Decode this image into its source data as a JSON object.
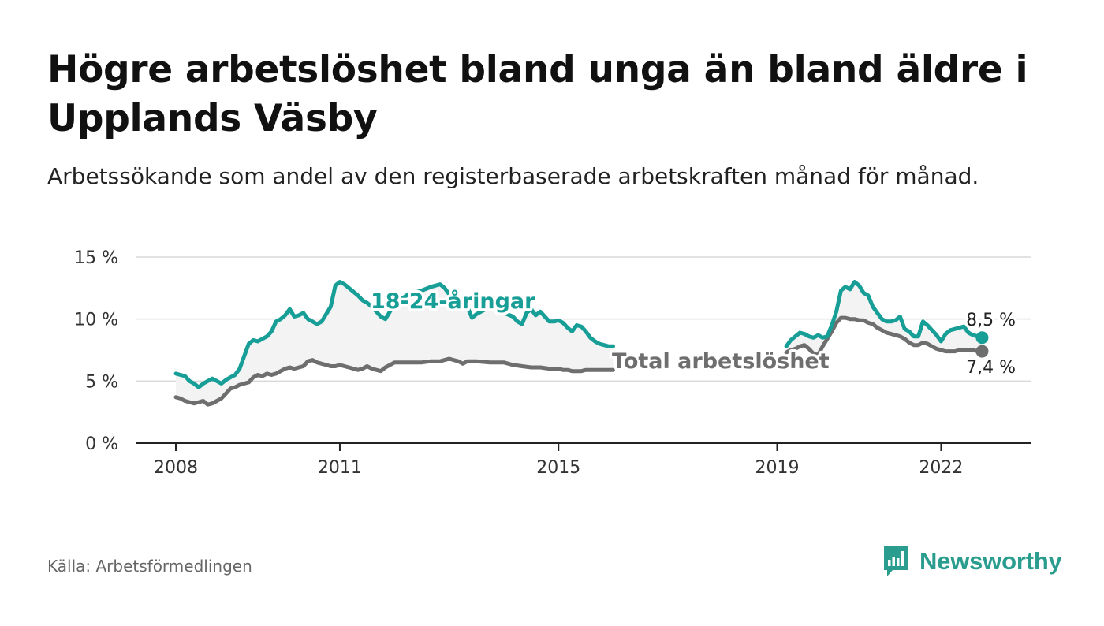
{
  "header": {
    "title": "Högre arbetslöshet bland unga än bland äldre i Upplands Väsby",
    "subtitle": "Arbetssökande som andel av den registerbaserade arbetskraften månad för månad."
  },
  "footer": {
    "source": "Källa: Arbetsförmedlingen",
    "brand": "Newsworthy"
  },
  "colors": {
    "youth": "#179e96",
    "total": "#6e6e6e",
    "brand": "#2a9d8f",
    "grid": "#d9d9d9",
    "band": "#f3f3f3"
  },
  "chart_data": {
    "type": "line",
    "title": "Högre arbetslöshet bland unga än bland äldre i Upplands Väsby",
    "xlabel": "",
    "ylabel": "",
    "xlim": [
      2008.0,
      2022.917
    ],
    "ylim": [
      0,
      15
    ],
    "yticks": [
      0,
      5,
      10,
      15
    ],
    "ytick_labels": [
      "0 %",
      "5 %",
      "10 %",
      "15 %"
    ],
    "xticks": [
      2008,
      2011,
      2015,
      2019,
      2022
    ],
    "xtick_labels": [
      "2008",
      "2011",
      "2015",
      "2019",
      "2022"
    ],
    "grid": true,
    "gap_after": 2016.0,
    "gap_before": 2019.167,
    "series": [
      {
        "name": "18-24-åringar",
        "label": "18-24-åringar",
        "end_label": "8,5 %",
        "points": [
          [
            2008.0,
            5.6
          ],
          [
            2008.083,
            5.5
          ],
          [
            2008.167,
            5.4
          ],
          [
            2008.25,
            5.0
          ],
          [
            2008.333,
            4.8
          ],
          [
            2008.417,
            4.5
          ],
          [
            2008.5,
            4.8
          ],
          [
            2008.583,
            5.0
          ],
          [
            2008.667,
            5.2
          ],
          [
            2008.75,
            5.0
          ],
          [
            2008.833,
            4.8
          ],
          [
            2008.917,
            5.1
          ],
          [
            2009.0,
            5.3
          ],
          [
            2009.083,
            5.5
          ],
          [
            2009.167,
            6.0
          ],
          [
            2009.25,
            7.0
          ],
          [
            2009.333,
            8.0
          ],
          [
            2009.417,
            8.3
          ],
          [
            2009.5,
            8.2
          ],
          [
            2009.583,
            8.4
          ],
          [
            2009.667,
            8.6
          ],
          [
            2009.75,
            9.0
          ],
          [
            2009.833,
            9.8
          ],
          [
            2009.917,
            10.0
          ],
          [
            2010.0,
            10.3
          ],
          [
            2010.083,
            10.8
          ],
          [
            2010.167,
            10.2
          ],
          [
            2010.25,
            10.3
          ],
          [
            2010.333,
            10.5
          ],
          [
            2010.417,
            10.0
          ],
          [
            2010.5,
            9.8
          ],
          [
            2010.583,
            9.6
          ],
          [
            2010.667,
            9.8
          ],
          [
            2010.75,
            10.4
          ],
          [
            2010.833,
            11.0
          ],
          [
            2010.917,
            12.7
          ],
          [
            2011.0,
            13.0
          ],
          [
            2011.083,
            12.8
          ],
          [
            2011.167,
            12.5
          ],
          [
            2011.25,
            12.2
          ],
          [
            2011.333,
            11.9
          ],
          [
            2011.417,
            11.5
          ],
          [
            2011.5,
            11.3
          ],
          [
            2011.583,
            11.0
          ],
          [
            2011.667,
            10.6
          ],
          [
            2011.75,
            10.2
          ],
          [
            2011.833,
            10.0
          ],
          [
            2011.917,
            10.6
          ],
          [
            2012.0,
            11.2
          ],
          [
            2012.25,
            12.0
          ],
          [
            2012.5,
            12.3
          ],
          [
            2012.667,
            12.6
          ],
          [
            2012.833,
            12.8
          ],
          [
            2012.917,
            12.5
          ],
          [
            2013.0,
            12.0
          ],
          [
            2013.167,
            11.5
          ],
          [
            2013.333,
            11.0
          ],
          [
            2013.417,
            10.1
          ],
          [
            2013.5,
            10.4
          ],
          [
            2013.75,
            11.0
          ],
          [
            2014.0,
            10.5
          ],
          [
            2014.167,
            10.2
          ],
          [
            2014.25,
            9.8
          ],
          [
            2014.333,
            9.6
          ],
          [
            2014.417,
            10.5
          ],
          [
            2014.5,
            10.8
          ],
          [
            2014.583,
            10.3
          ],
          [
            2014.667,
            10.6
          ],
          [
            2014.75,
            10.2
          ],
          [
            2014.833,
            9.8
          ],
          [
            2014.917,
            9.8
          ],
          [
            2015.0,
            9.9
          ],
          [
            2015.083,
            9.7
          ],
          [
            2015.167,
            9.3
          ],
          [
            2015.25,
            9.0
          ],
          [
            2015.333,
            9.5
          ],
          [
            2015.417,
            9.4
          ],
          [
            2015.5,
            9.0
          ],
          [
            2015.583,
            8.5
          ],
          [
            2015.667,
            8.2
          ],
          [
            2015.75,
            8.0
          ],
          [
            2015.833,
            7.9
          ],
          [
            2015.917,
            7.8
          ],
          [
            2016.0,
            7.8
          ],
          [
            2019.167,
            7.8
          ],
          [
            2019.25,
            8.3
          ],
          [
            2019.333,
            8.6
          ],
          [
            2019.417,
            8.9
          ],
          [
            2019.5,
            8.8
          ],
          [
            2019.583,
            8.6
          ],
          [
            2019.667,
            8.5
          ],
          [
            2019.75,
            8.7
          ],
          [
            2019.833,
            8.5
          ],
          [
            2019.917,
            8.6
          ],
          [
            2020.0,
            9.5
          ],
          [
            2020.083,
            10.6
          ],
          [
            2020.167,
            12.3
          ],
          [
            2020.25,
            12.6
          ],
          [
            2020.333,
            12.4
          ],
          [
            2020.417,
            13.0
          ],
          [
            2020.5,
            12.7
          ],
          [
            2020.583,
            12.1
          ],
          [
            2020.667,
            11.9
          ],
          [
            2020.75,
            11.0
          ],
          [
            2020.833,
            10.5
          ],
          [
            2020.917,
            10.0
          ],
          [
            2021.0,
            9.8
          ],
          [
            2021.083,
            9.8
          ],
          [
            2021.167,
            9.9
          ],
          [
            2021.25,
            10.2
          ],
          [
            2021.333,
            9.2
          ],
          [
            2021.417,
            9.0
          ],
          [
            2021.5,
            8.6
          ],
          [
            2021.583,
            8.6
          ],
          [
            2021.667,
            9.8
          ],
          [
            2021.75,
            9.5
          ],
          [
            2021.833,
            9.1
          ],
          [
            2021.917,
            8.7
          ],
          [
            2022.0,
            8.2
          ],
          [
            2022.083,
            8.8
          ],
          [
            2022.167,
            9.1
          ],
          [
            2022.25,
            9.2
          ],
          [
            2022.333,
            9.3
          ],
          [
            2022.417,
            9.4
          ],
          [
            2022.5,
            8.9
          ],
          [
            2022.583,
            8.7
          ],
          [
            2022.667,
            8.6
          ],
          [
            2022.75,
            8.5
          ]
        ]
      },
      {
        "name": "Total arbetslöshet",
        "label": "Total arbetslöshet",
        "end_label": "7,4 %",
        "points": [
          [
            2008.0,
            3.7
          ],
          [
            2008.083,
            3.6
          ],
          [
            2008.167,
            3.4
          ],
          [
            2008.25,
            3.3
          ],
          [
            2008.333,
            3.2
          ],
          [
            2008.417,
            3.3
          ],
          [
            2008.5,
            3.4
          ],
          [
            2008.583,
            3.1
          ],
          [
            2008.667,
            3.2
          ],
          [
            2008.75,
            3.4
          ],
          [
            2008.833,
            3.6
          ],
          [
            2008.917,
            4.0
          ],
          [
            2009.0,
            4.4
          ],
          [
            2009.083,
            4.5
          ],
          [
            2009.167,
            4.7
          ],
          [
            2009.25,
            4.8
          ],
          [
            2009.333,
            4.9
          ],
          [
            2009.417,
            5.3
          ],
          [
            2009.5,
            5.5
          ],
          [
            2009.583,
            5.4
          ],
          [
            2009.667,
            5.6
          ],
          [
            2009.75,
            5.5
          ],
          [
            2009.833,
            5.6
          ],
          [
            2009.917,
            5.8
          ],
          [
            2010.0,
            6.0
          ],
          [
            2010.083,
            6.1
          ],
          [
            2010.167,
            6.0
          ],
          [
            2010.25,
            6.1
          ],
          [
            2010.333,
            6.2
          ],
          [
            2010.417,
            6.6
          ],
          [
            2010.5,
            6.7
          ],
          [
            2010.583,
            6.5
          ],
          [
            2010.667,
            6.4
          ],
          [
            2010.75,
            6.3
          ],
          [
            2010.833,
            6.2
          ],
          [
            2010.917,
            6.2
          ],
          [
            2011.0,
            6.3
          ],
          [
            2011.083,
            6.2
          ],
          [
            2011.167,
            6.1
          ],
          [
            2011.25,
            6.0
          ],
          [
            2011.333,
            5.9
          ],
          [
            2011.417,
            6.0
          ],
          [
            2011.5,
            6.2
          ],
          [
            2011.583,
            6.0
          ],
          [
            2011.667,
            5.9
          ],
          [
            2011.75,
            5.8
          ],
          [
            2011.833,
            6.1
          ],
          [
            2011.917,
            6.3
          ],
          [
            2012.0,
            6.5
          ],
          [
            2012.25,
            6.5
          ],
          [
            2012.5,
            6.5
          ],
          [
            2012.667,
            6.6
          ],
          [
            2012.833,
            6.6
          ],
          [
            2013.0,
            6.8
          ],
          [
            2013.083,
            6.7
          ],
          [
            2013.167,
            6.6
          ],
          [
            2013.25,
            6.4
          ],
          [
            2013.333,
            6.6
          ],
          [
            2013.5,
            6.6
          ],
          [
            2013.75,
            6.5
          ],
          [
            2014.0,
            6.5
          ],
          [
            2014.167,
            6.3
          ],
          [
            2014.333,
            6.2
          ],
          [
            2014.5,
            6.1
          ],
          [
            2014.667,
            6.1
          ],
          [
            2014.833,
            6.0
          ],
          [
            2015.0,
            6.0
          ],
          [
            2015.083,
            5.9
          ],
          [
            2015.167,
            5.9
          ],
          [
            2015.25,
            5.8
          ],
          [
            2015.333,
            5.8
          ],
          [
            2015.417,
            5.8
          ],
          [
            2015.5,
            5.9
          ],
          [
            2015.583,
            5.9
          ],
          [
            2015.667,
            5.9
          ],
          [
            2015.75,
            5.9
          ],
          [
            2015.833,
            5.9
          ],
          [
            2016.0,
            5.9
          ],
          [
            2019.167,
            7.3
          ],
          [
            2019.25,
            7.5
          ],
          [
            2019.333,
            7.6
          ],
          [
            2019.417,
            7.8
          ],
          [
            2019.5,
            7.9
          ],
          [
            2019.583,
            7.6
          ],
          [
            2019.667,
            7.2
          ],
          [
            2019.75,
            7.1
          ],
          [
            2019.833,
            7.8
          ],
          [
            2019.917,
            8.4
          ],
          [
            2020.0,
            9.0
          ],
          [
            2020.083,
            9.7
          ],
          [
            2020.167,
            10.1
          ],
          [
            2020.25,
            10.1
          ],
          [
            2020.333,
            10.0
          ],
          [
            2020.417,
            10.0
          ],
          [
            2020.5,
            9.9
          ],
          [
            2020.583,
            9.9
          ],
          [
            2020.667,
            9.7
          ],
          [
            2020.75,
            9.6
          ],
          [
            2020.833,
            9.3
          ],
          [
            2020.917,
            9.1
          ],
          [
            2021.0,
            8.9
          ],
          [
            2021.083,
            8.8
          ],
          [
            2021.167,
            8.7
          ],
          [
            2021.25,
            8.6
          ],
          [
            2021.333,
            8.4
          ],
          [
            2021.417,
            8.1
          ],
          [
            2021.5,
            7.9
          ],
          [
            2021.583,
            7.9
          ],
          [
            2021.667,
            8.1
          ],
          [
            2021.75,
            8.0
          ],
          [
            2021.833,
            7.8
          ],
          [
            2021.917,
            7.6
          ],
          [
            2022.0,
            7.5
          ],
          [
            2022.083,
            7.4
          ],
          [
            2022.167,
            7.4
          ],
          [
            2022.25,
            7.4
          ],
          [
            2022.333,
            7.5
          ],
          [
            2022.417,
            7.5
          ],
          [
            2022.5,
            7.5
          ],
          [
            2022.583,
            7.5
          ],
          [
            2022.667,
            7.4
          ],
          [
            2022.75,
            7.4
          ]
        ]
      }
    ]
  }
}
